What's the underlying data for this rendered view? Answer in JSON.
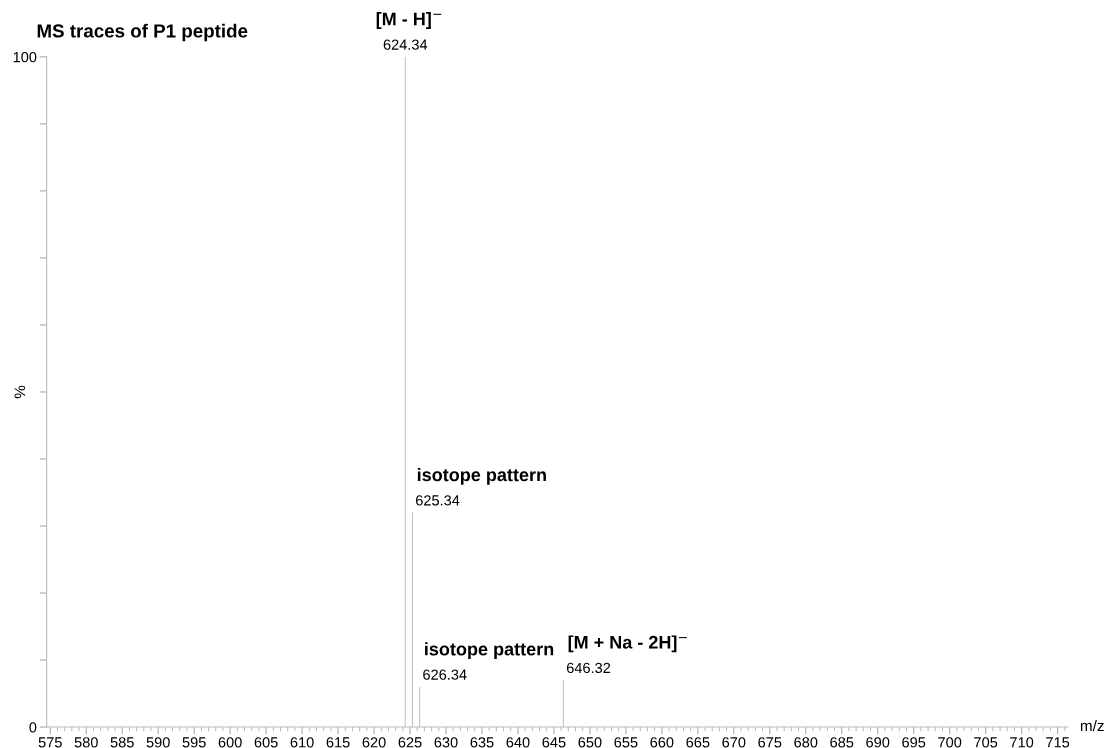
{
  "chart_data": {
    "type": "bar",
    "title": "MS traces of P1 peptide",
    "xlabel": "m/z",
    "ylabel": "%",
    "x": [
      624.34,
      625.34,
      626.34,
      646.32
    ],
    "values": [
      100,
      32,
      6,
      7
    ],
    "color": "#c0c0c0",
    "xlim": [
      574.5,
      716.4
    ],
    "xticks": [
      575,
      580,
      585,
      590,
      595,
      600,
      605,
      610,
      615,
      620,
      625,
      630,
      635,
      640,
      645,
      650,
      655,
      660,
      665,
      670,
      675,
      680,
      685,
      690,
      695,
      700,
      705,
      710,
      715
    ],
    "ylim": [
      0,
      100
    ],
    "yticks": [
      0,
      {
        "value": 10,
        "label": null
      },
      {
        "value": 20,
        "label": null
      },
      {
        "value": 30,
        "label": null
      },
      {
        "value": 40,
        "label": null
      },
      {
        "value": 50,
        "label": null
      },
      {
        "value": 60,
        "label": null
      },
      {
        "value": 70,
        "label": null
      },
      {
        "value": 80,
        "label": null
      },
      {
        "value": 90,
        "label": null
      },
      100
    ],
    "grid": false,
    "annotations": [
      {
        "text": "[M - H]$^{−}$",
        "x": 624.34,
        "y": 100
      },
      {
        "text": "624.34",
        "x": 624.34,
        "y": 100
      },
      {
        "text": "isotope pattern",
        "x": 625.34,
        "y": 32
      },
      {
        "text": "625.34",
        "x": 625.34,
        "y": 32
      },
      {
        "text": "isotope pattern",
        "x": 626.34,
        "y": 6
      },
      {
        "text": "626.34",
        "x": 626.34,
        "y": 6
      },
      {
        "text": "[M + Na - 2H]$^{−}$",
        "x": 646.32,
        "y": 7
      },
      {
        "text": "646.32",
        "x": 646.32,
        "y": 7
      }
    ]
  }
}
